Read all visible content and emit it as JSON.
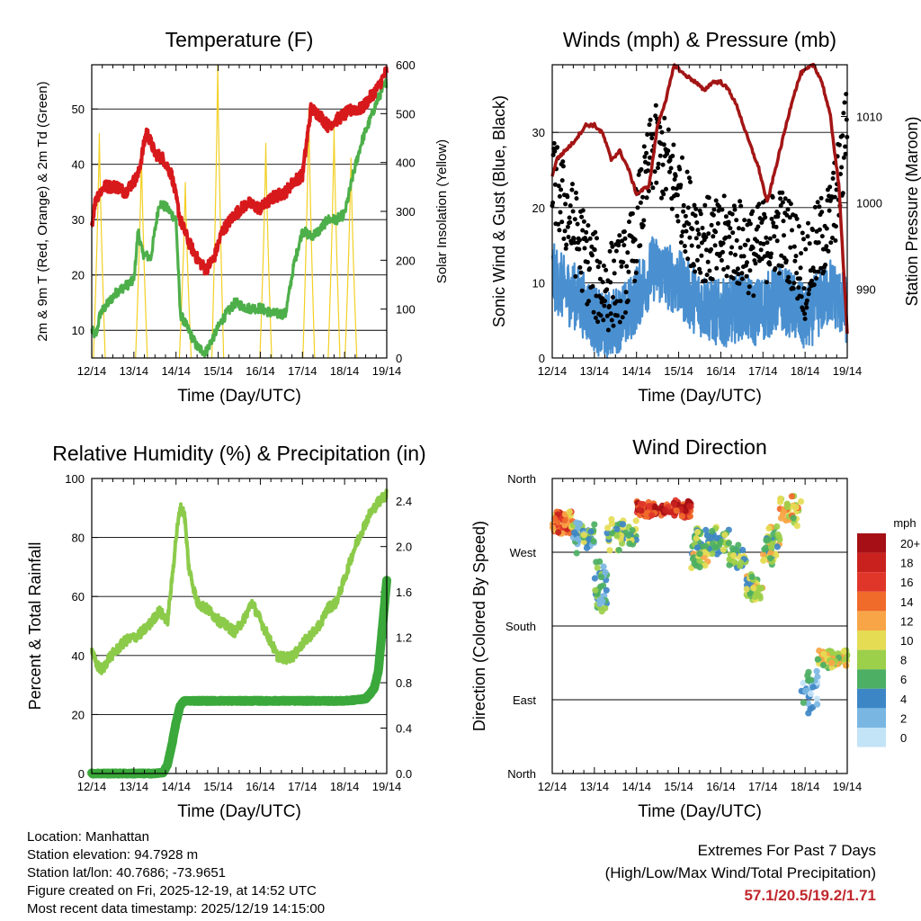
{
  "x_ticks": [
    "12/14",
    "13/14",
    "14/14",
    "15/14",
    "16/14",
    "17/14",
    "18/14",
    "19/14"
  ],
  "x_label": "Time (Day/UTC)",
  "colors": {
    "temp_red": "#d7191c",
    "td_green": "#4daf4a",
    "solar_yellow": "#f2d024",
    "wind_blue": "#4a90d0",
    "gust_black": "#000000",
    "pressure_maroon": "#a31515",
    "rh_lightgreen": "#8ccb4a",
    "precip_green": "#3aa83a",
    "extremes_red": "#c0282d"
  },
  "chart_data": [
    {
      "id": "temperature",
      "type": "line",
      "title": "Temperature (F)",
      "xlabel": "Time (Day/UTC)",
      "ylabel": "2m & 9m T (Red, Orange) & 2m Td (Green)",
      "ylabel_right": "Solar Insolation (Yellow)",
      "ylim": [
        5,
        58
      ],
      "ylim_right": [
        0,
        600
      ],
      "y_ticks": [
        10,
        20,
        30,
        40,
        50
      ],
      "y_ticks_right": [
        0,
        100,
        200,
        300,
        400,
        500,
        600
      ],
      "series": [
        {
          "name": "2m/9m T",
          "color": "#d7191c",
          "x": [
            0,
            0.1,
            0.3,
            0.6,
            0.8,
            1.0,
            1.1,
            1.3,
            1.5,
            1.7,
            1.9,
            2.1,
            2.3,
            2.5,
            2.7,
            2.9,
            3.1,
            3.4,
            3.7,
            4.0,
            4.3,
            4.6,
            4.8,
            5.0,
            5.2,
            5.4,
            5.6,
            5.8,
            6.0,
            6.2,
            6.4,
            6.6,
            6.8,
            7.0
          ],
          "values": [
            29,
            34,
            36,
            36,
            35,
            37,
            38,
            46,
            42,
            41,
            38,
            30,
            26,
            23,
            21,
            23,
            28,
            31,
            33,
            32,
            34,
            35,
            37,
            38,
            50,
            49,
            47,
            48,
            49,
            50,
            50,
            52,
            54,
            57
          ]
        },
        {
          "name": "2m Td",
          "color": "#4daf4a",
          "x": [
            0,
            0.1,
            0.2,
            0.4,
            0.6,
            0.8,
            1.0,
            1.1,
            1.2,
            1.4,
            1.6,
            1.8,
            2.0,
            2.1,
            2.3,
            2.5,
            2.7,
            2.9,
            3.1,
            3.4,
            3.7,
            4.0,
            4.3,
            4.6,
            4.8,
            5.0,
            5.2,
            5.4,
            5.6,
            5.8,
            6.0,
            6.2,
            6.4,
            6.6,
            6.8,
            7.0
          ],
          "values": [
            10,
            9,
            13,
            15,
            17,
            18,
            19,
            28,
            24,
            23,
            33,
            32,
            30,
            13,
            10,
            7,
            6,
            9,
            12,
            15,
            14,
            14,
            13,
            13,
            22,
            28,
            27,
            28,
            30,
            30,
            31,
            38,
            44,
            48,
            52,
            55
          ]
        }
      ],
      "series_right": [
        {
          "name": "Solar Insolation",
          "color": "#f2d024",
          "peaks": [
            {
              "x": 0.18,
              "v": 460
            },
            {
              "x": 1.18,
              "v": 420
            },
            {
              "x": 2.22,
              "v": 360
            },
            {
              "x": 2.99,
              "v": 600
            },
            {
              "x": 4.13,
              "v": 440
            },
            {
              "x": 5.15,
              "v": 510
            },
            {
              "x": 5.75,
              "v": 470
            },
            {
              "x": 6.15,
              "v": 410
            }
          ]
        }
      ]
    },
    {
      "id": "winds",
      "type": "line",
      "title": "Winds (mph) & Pressure (mb)",
      "xlabel": "Time (Day/UTC)",
      "ylabel": "Sonic Wind & Gust (Blue, Black)",
      "ylabel_right": "Station Pressure (Maroon)",
      "ylim": [
        0,
        39
      ],
      "ylim_right": [
        982,
        1016
      ],
      "y_ticks": [
        0,
        10,
        20,
        30
      ],
      "y_ticks_right": [
        990,
        1000,
        1010
      ],
      "series": [
        {
          "name": "Sonic Wind",
          "color": "#4a90d0",
          "x": [
            0,
            0.3,
            0.6,
            0.9,
            1.2,
            1.5,
            1.8,
            2.1,
            2.4,
            2.7,
            3.0,
            3.3,
            3.6,
            3.9,
            4.2,
            4.5,
            4.8,
            5.1,
            5.4,
            5.7,
            6.0,
            6.3,
            6.6,
            6.9,
            7.0
          ],
          "values": [
            11,
            9,
            8,
            6,
            4,
            5,
            6,
            9,
            12,
            11,
            10,
            8,
            7,
            6,
            6,
            7,
            6,
            7,
            8,
            7,
            5,
            7,
            9,
            7,
            6
          ]
        },
        {
          "name": "Gust",
          "color": "#000000",
          "x": [
            0,
            0.3,
            0.6,
            0.9,
            1.2,
            1.5,
            1.8,
            2.1,
            2.4,
            2.7,
            3.0,
            3.3,
            3.6,
            3.9,
            4.2,
            4.5,
            4.8,
            5.1,
            5.4,
            5.7,
            6.0,
            6.3,
            6.6,
            6.9,
            7.0
          ],
          "values": [
            24,
            20,
            16,
            12,
            9,
            10,
            12,
            20,
            28,
            26,
            22,
            18,
            16,
            15,
            16,
            15,
            14,
            16,
            17,
            15,
            11,
            15,
            18,
            26,
            35
          ]
        }
      ],
      "series_right": [
        {
          "name": "Station Pressure",
          "color": "#a31515",
          "x": [
            0,
            0.1,
            0.5,
            0.8,
            1.0,
            1.2,
            1.4,
            1.6,
            1.8,
            2.0,
            2.3,
            2.5,
            2.7,
            2.9,
            3.1,
            3.4,
            3.6,
            3.8,
            4.0,
            4.2,
            4.4,
            4.6,
            4.9,
            5.1,
            5.3,
            5.5,
            5.7,
            5.9,
            6.2,
            6.4,
            6.6,
            6.8,
            7.0
          ],
          "values": [
            1003,
            1005,
            1007,
            1009,
            1009,
            1008,
            1005,
            1006,
            1004,
            1001,
            1002,
            1009,
            1012,
            1016,
            1015,
            1014,
            1013,
            1014,
            1014,
            1013,
            1011,
            1008,
            1004,
            1000,
            1004,
            1008,
            1012,
            1015,
            1016,
            1014,
            1010,
            1002,
            985
          ]
        }
      ]
    },
    {
      "id": "humidity",
      "type": "line",
      "title": "Relative Humidity (%) & Precipitation (in)",
      "xlabel": "Time (Day/UTC)",
      "ylabel": "Percent & Total Rainfall",
      "ylim": [
        0,
        100
      ],
      "ylim_right": [
        0,
        2.6
      ],
      "y_ticks": [
        0,
        20,
        40,
        60,
        80,
        100
      ],
      "y_ticks_right": [
        "0.0",
        "0.4",
        "0.8",
        "1.2",
        "1.6",
        "2.0",
        "2.4"
      ],
      "series": [
        {
          "name": "Relative Humidity",
          "color": "#8ccb4a",
          "x": [
            0,
            0.1,
            0.25,
            0.4,
            0.6,
            0.8,
            1.0,
            1.2,
            1.4,
            1.6,
            1.8,
            1.9,
            2.0,
            2.1,
            2.2,
            2.3,
            2.5,
            2.8,
            3.0,
            3.2,
            3.4,
            3.6,
            3.8,
            4.0,
            4.2,
            4.4,
            4.6,
            4.8,
            5.0,
            5.2,
            5.4,
            5.6,
            5.8,
            6.0,
            6.2,
            6.4,
            6.6,
            6.8,
            7.0
          ],
          "values": [
            42,
            37,
            35,
            39,
            42,
            45,
            46,
            48,
            51,
            55,
            52,
            65,
            80,
            90,
            88,
            70,
            58,
            55,
            52,
            50,
            48,
            52,
            58,
            52,
            46,
            40,
            39,
            40,
            44,
            47,
            50,
            56,
            58,
            66,
            75,
            82,
            88,
            92,
            95
          ]
        },
        {
          "name": "Total Precipitation",
          "color": "#3aa83a",
          "axis": "right",
          "x": [
            0,
            1.0,
            1.5,
            1.7,
            1.8,
            1.9,
            2.0,
            2.1,
            2.2,
            3.0,
            4.0,
            5.0,
            6.0,
            6.3,
            6.5,
            6.6,
            6.7,
            6.8,
            6.9,
            7.0
          ],
          "values": [
            0,
            0,
            0,
            0.01,
            0.08,
            0.25,
            0.45,
            0.6,
            0.64,
            0.64,
            0.64,
            0.64,
            0.64,
            0.65,
            0.66,
            0.7,
            0.75,
            0.9,
            1.3,
            1.7
          ]
        }
      ]
    },
    {
      "id": "wind_direction",
      "type": "scatter",
      "title": "Wind Direction",
      "xlabel": "Time (Day/UTC)",
      "ylabel": "Direction (Colored By Speed)",
      "ylim": [
        0,
        360
      ],
      "y_ticks": [
        "North",
        "East",
        "South",
        "West",
        "North"
      ],
      "clusters": [
        {
          "x0": 0.0,
          "x1": 0.5,
          "dir": 305,
          "spread": 18,
          "speed": 14,
          "n": 60
        },
        {
          "x0": 0.5,
          "x1": 1.0,
          "dir": 290,
          "spread": 22,
          "speed": 6,
          "n": 50
        },
        {
          "x0": 1.0,
          "x1": 1.3,
          "dir": 230,
          "spread": 40,
          "speed": 5,
          "n": 40
        },
        {
          "x0": 1.3,
          "x1": 2.0,
          "dir": 290,
          "spread": 25,
          "speed": 7,
          "n": 50
        },
        {
          "x0": 2.0,
          "x1": 3.3,
          "dir": 323,
          "spread": 12,
          "speed": 17,
          "n": 130
        },
        {
          "x0": 3.3,
          "x1": 4.2,
          "dir": 285,
          "spread": 20,
          "speed": 7,
          "n": 70
        },
        {
          "x0": 3.3,
          "x1": 3.7,
          "dir": 260,
          "spread": 15,
          "speed": 9,
          "n": 20
        },
        {
          "x0": 4.2,
          "x1": 4.6,
          "dir": 265,
          "spread": 20,
          "speed": 7,
          "n": 30
        },
        {
          "x0": 4.6,
          "x1": 5.0,
          "dir": 225,
          "spread": 20,
          "speed": 8,
          "n": 40
        },
        {
          "x0": 5.0,
          "x1": 5.4,
          "dir": 280,
          "spread": 30,
          "speed": 8,
          "n": 45
        },
        {
          "x0": 5.4,
          "x1": 5.9,
          "dir": 320,
          "spread": 25,
          "speed": 10,
          "n": 35
        },
        {
          "x0": 5.9,
          "x1": 6.3,
          "dir": 100,
          "spread": 40,
          "speed": 3,
          "n": 30
        },
        {
          "x0": 6.3,
          "x1": 7.0,
          "dir": 140,
          "spread": 12,
          "speed": 9,
          "n": 80
        }
      ],
      "legend": {
        "title": "mph",
        "labels": [
          "20+",
          "18",
          "16",
          "14",
          "12",
          "10",
          "8",
          "6",
          "4",
          "2",
          "0"
        ],
        "colors": [
          "#a50f15",
          "#c8211e",
          "#e0362a",
          "#f06a2a",
          "#f8a547",
          "#e5dc54",
          "#9ccf4a",
          "#4caf63",
          "#3d86c6",
          "#79b6e2",
          "#c3e3f7"
        ]
      }
    }
  ],
  "footer": {
    "location": "Location: Manhattan",
    "elevation": "Station elevation: 94.7928 m",
    "latlon": "Station lat/lon: 40.7686; -73.9651",
    "created": "Figure created on Fri, 2025-12-19, at 14:52 UTC",
    "recent": "Most recent data timestamp: 2025/12/19 14:15:00"
  },
  "extremes": {
    "title": "Extremes For Past 7 Days",
    "subtitle": "(High/Low/Max Wind/Total Precipitation)",
    "values": "57.1/20.5/19.2/1.71"
  }
}
